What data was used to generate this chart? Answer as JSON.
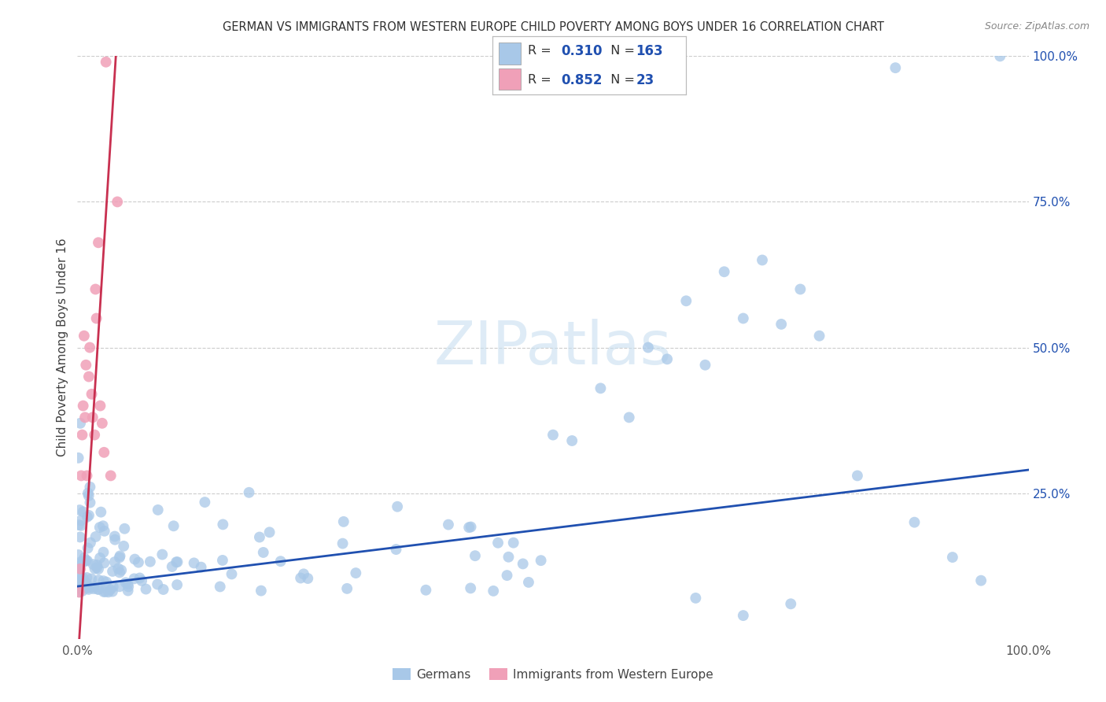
{
  "title": "GERMAN VS IMMIGRANTS FROM WESTERN EUROPE CHILD POVERTY AMONG BOYS UNDER 16 CORRELATION CHART",
  "source": "Source: ZipAtlas.com",
  "ylabel": "Child Poverty Among Boys Under 16",
  "watermark": "ZIPatlas",
  "blue_R": 0.31,
  "blue_N": 163,
  "pink_R": 0.852,
  "pink_N": 23,
  "blue_color": "#a8c8e8",
  "pink_color": "#f0a0b8",
  "blue_line_color": "#2050b0",
  "pink_line_color": "#c83050",
  "title_color": "#303030",
  "legend_R_color": "#2050b0",
  "legend_N_color": "#2050b0",
  "xlim": [
    0,
    1.0
  ],
  "ylim": [
    0,
    1.0
  ],
  "grid_color": "#cccccc",
  "background_color": "#ffffff",
  "legend_label_blue": "Germans",
  "legend_label_pink": "Immigrants from Western Europe",
  "fig_width": 14.06,
  "fig_height": 8.92
}
